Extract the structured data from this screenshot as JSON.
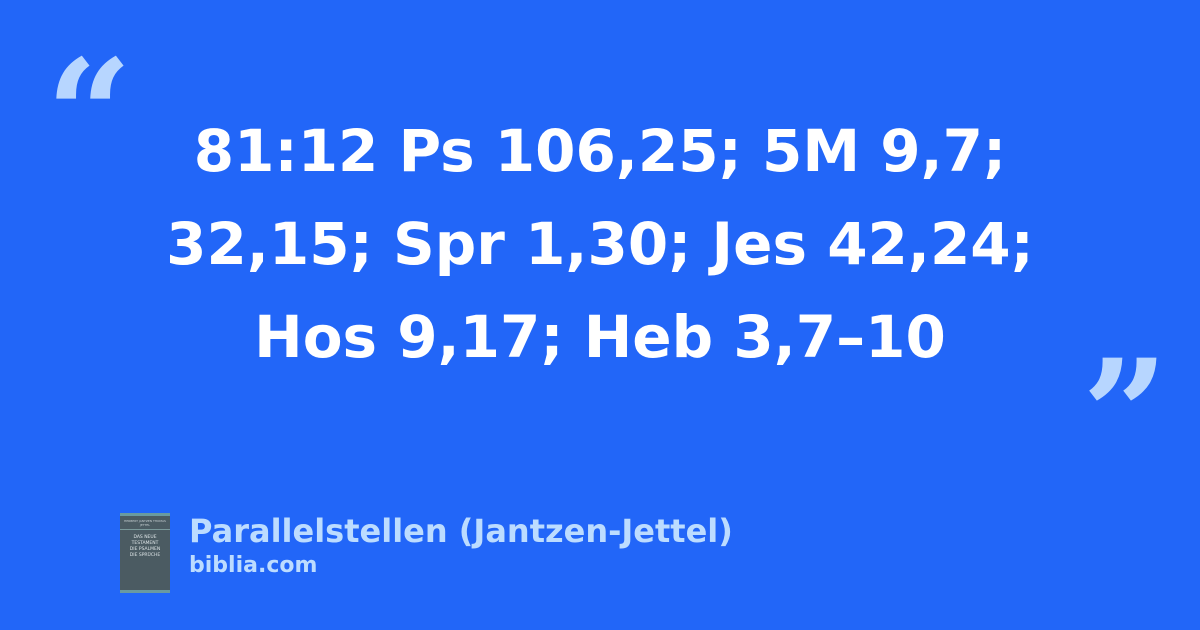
{
  "quote": {
    "open_mark": "“",
    "close_mark": "”",
    "lines": [
      "81:12 Ps 106,25; 5M 9,7;",
      "32,15; Spr 1,30; Jes 42,24;",
      "Hos 9,17; Heb 3,7–10"
    ]
  },
  "source": {
    "title": "Parallelstellen (Jantzen-Jettel)",
    "site": "biblia.com",
    "cover": {
      "authors": "HERBERT JANTZEN THOMAS JETTEL",
      "title_lines": [
        "DAS NEUE",
        "TESTAMENT",
        "DIE PSALMEN",
        "DIE SPRÜCHE"
      ]
    }
  },
  "colors": {
    "background": "#2266f8",
    "accent": "#b7d6ff",
    "text": "#ffffff"
  }
}
